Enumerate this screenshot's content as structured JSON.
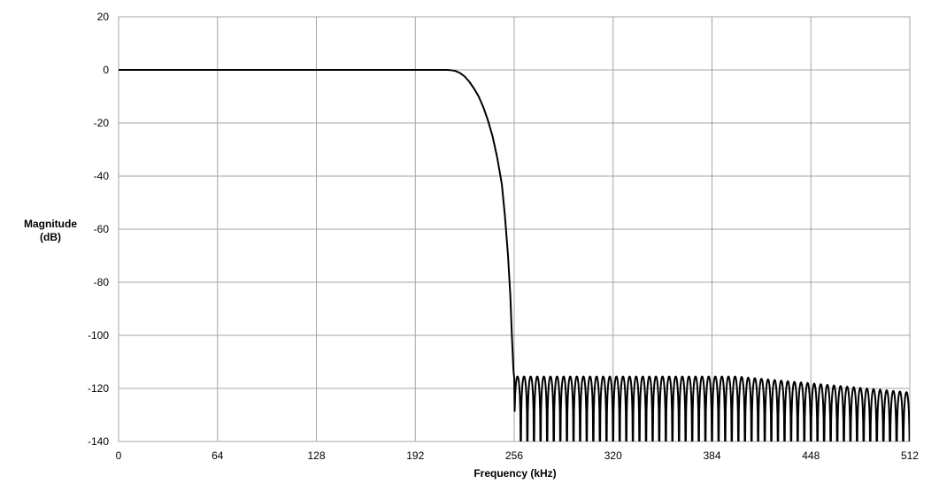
{
  "chart_data": {
    "type": "line",
    "title": "",
    "xlabel": "Frequency (kHz)",
    "ylabel_lines": [
      "Magnitude",
      "(dB)"
    ],
    "xlim": [
      0,
      512
    ],
    "ylim": [
      -140,
      20
    ],
    "x_ticks": [
      0,
      64,
      128,
      192,
      256,
      320,
      384,
      448,
      512
    ],
    "x_tick_labels": [
      "0",
      "64",
      "128",
      "192",
      "256",
      "320",
      "384",
      "448",
      "512"
    ],
    "y_ticks": [
      20,
      0,
      -20,
      -40,
      -60,
      -80,
      -100,
      -120,
      -140
    ],
    "y_tick_labels": [
      "20",
      "0",
      "-20",
      "-40",
      "-60",
      "-80",
      "-100",
      "-120",
      "-140"
    ],
    "grid": true,
    "legend": "none",
    "series": [
      {
        "line_color": "#000000",
        "passband": {
          "x_from": 0,
          "x_to": 212,
          "y": 0
        },
        "transition": [
          [
            212,
            0
          ],
          [
            215,
            -0.1
          ],
          [
            218,
            -0.4
          ],
          [
            221,
            -1.2
          ],
          [
            224,
            -2.5
          ],
          [
            227,
            -4.5
          ],
          [
            230,
            -7
          ],
          [
            233,
            -10
          ],
          [
            236,
            -14
          ],
          [
            239,
            -19
          ],
          [
            242,
            -25
          ],
          [
            245,
            -33
          ],
          [
            248,
            -43
          ],
          [
            250,
            -55
          ],
          [
            252,
            -70
          ],
          [
            253.5,
            -85
          ],
          [
            254.5,
            -100
          ],
          [
            255.5,
            -113
          ],
          [
            256,
            -116
          ]
        ],
        "stopband": {
          "x_from": 256,
          "x_to": 512,
          "lobe_count": 60,
          "peak_start": -115.5,
          "peak_end": -121.5,
          "peak_end_fade_start": 400,
          "null_depth": "below -140"
        }
      }
    ]
  }
}
